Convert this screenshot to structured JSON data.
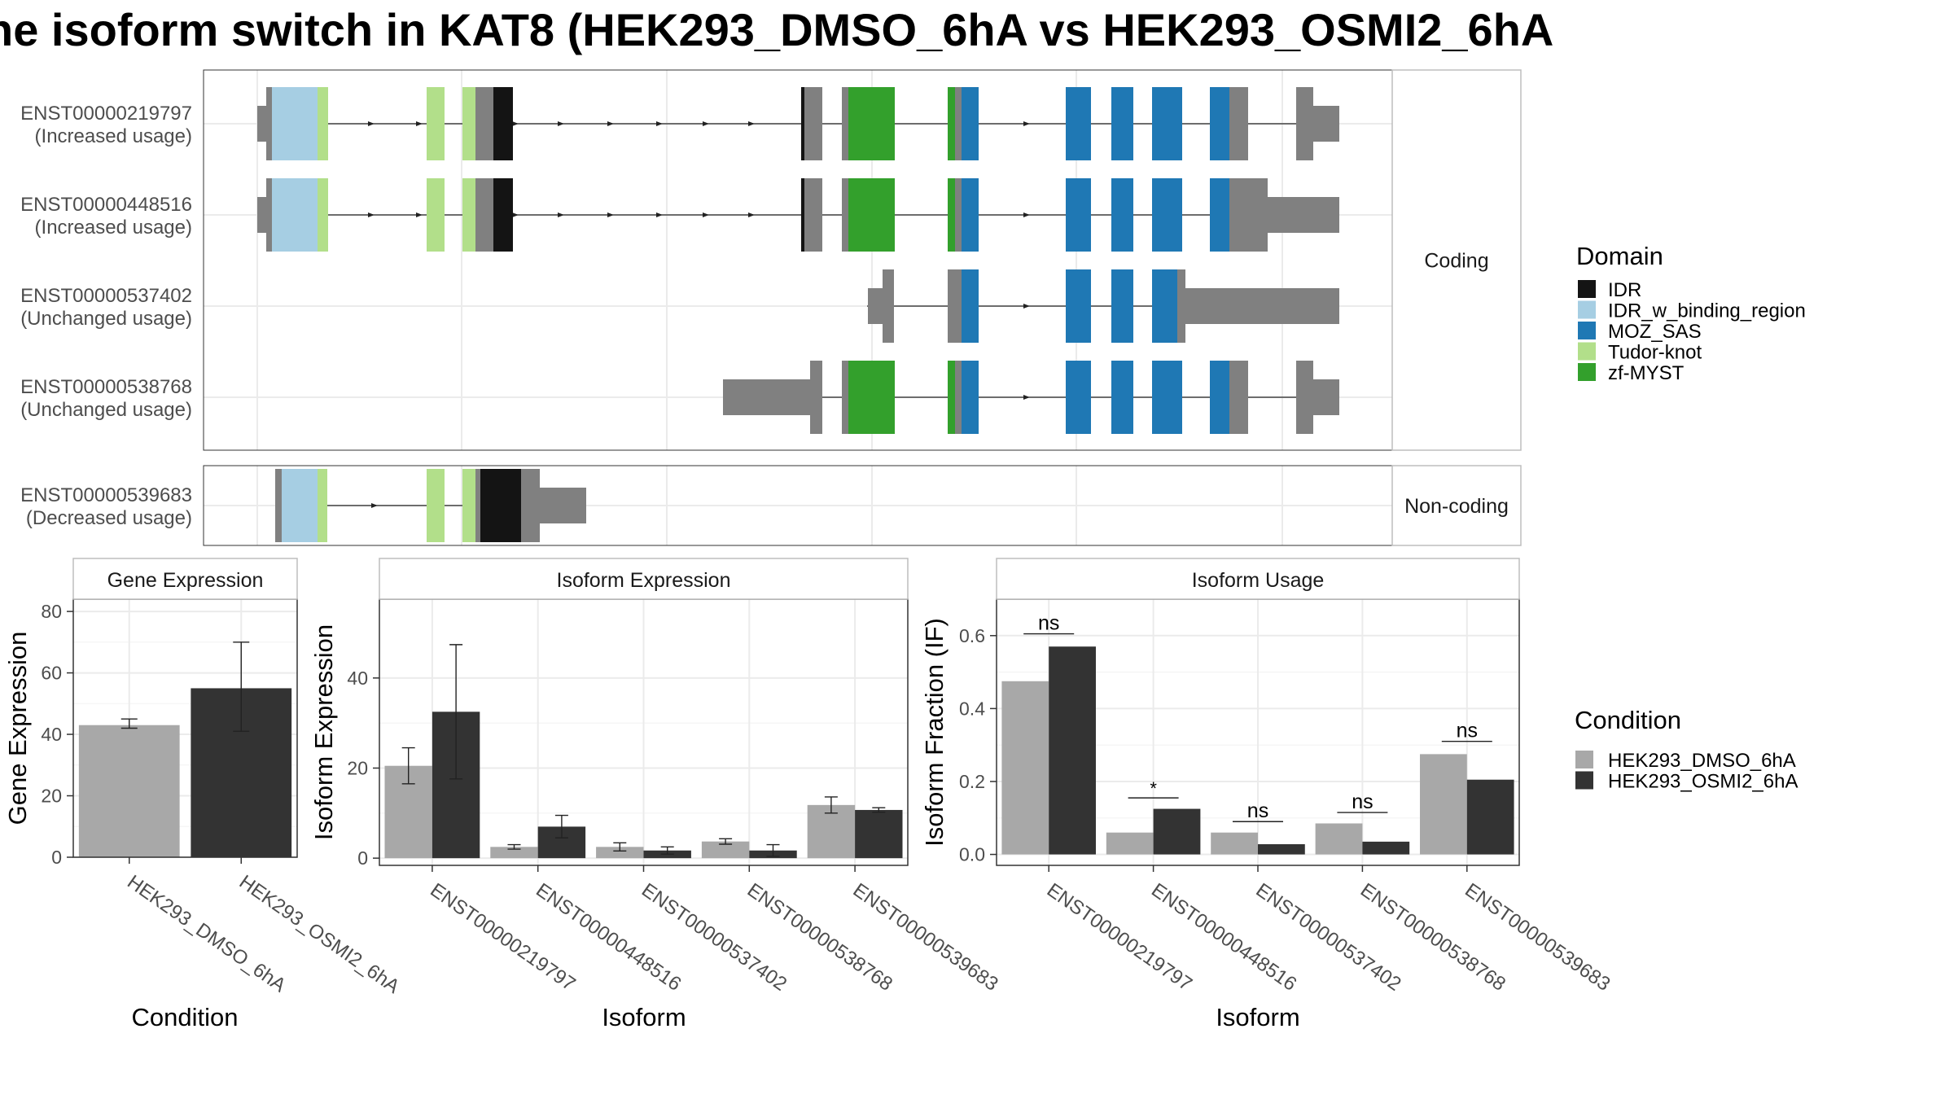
{
  "title": "he isoform switch in KAT8 (HEK293_DMSO_6hA vs HEK293_OSMI2_6hA",
  "colors": {
    "utr": "#808080",
    "IDR": "#141414",
    "IDR_w_binding_region": "#a6cee3",
    "MOZ_SAS": "#1f78b4",
    "Tudor-knot": "#b2df8a",
    "zf-MYST": "#33a02c",
    "HEK293_DMSO_6hA": "#a8a8a8",
    "HEK293_OSMI2_6hA": "#333333"
  },
  "structure": {
    "coding_strip": "Coding",
    "noncoding_strip": "Non-coding",
    "transcripts": [
      {
        "id": "ENST00000219797",
        "usage": "(Increased usage)",
        "panel": "coding"
      },
      {
        "id": "ENST00000448516",
        "usage": "(Increased usage)",
        "panel": "coding"
      },
      {
        "id": "ENST00000537402",
        "usage": "(Unchanged usage)",
        "panel": "coding"
      },
      {
        "id": "ENST00000538768",
        "usage": "(Unchanged usage)",
        "panel": "coding"
      },
      {
        "id": "ENST00000539683",
        "usage": "(Decreased usage)",
        "panel": "noncoding"
      }
    ]
  },
  "legend_domain": {
    "title": "Domain",
    "items": [
      "IDR",
      "IDR_w_binding_region",
      "MOZ_SAS",
      "Tudor-knot",
      "zf-MYST"
    ]
  },
  "legend_condition": {
    "title": "Condition",
    "items": [
      "HEK293_DMSO_6hA",
      "HEK293_OSMI2_6hA"
    ]
  },
  "chart_data": [
    {
      "type": "bar",
      "title": "Gene Expression",
      "xlabel": "Condition",
      "ylabel": "Gene Expression",
      "categories": [
        "HEK293_DMSO_6hA",
        "HEK293_OSMI2_6hA"
      ],
      "values": [
        43,
        55
      ],
      "errors": [
        [
          42,
          45
        ],
        [
          41,
          70
        ]
      ],
      "yticks": [
        0,
        20,
        40,
        60,
        80
      ],
      "ylim": [
        0,
        84
      ],
      "grid": true
    },
    {
      "type": "bar",
      "title": "Isoform Expression",
      "xlabel": "Isoform",
      "ylabel": "Isoform Expression",
      "categories": [
        "ENST00000219797",
        "ENST00000448516",
        "ENST00000537402",
        "ENST00000538768",
        "ENST00000539683"
      ],
      "series": [
        {
          "name": "HEK293_DMSO_6hA",
          "values": [
            20.5,
            2.5,
            2.5,
            3.7,
            11.8
          ],
          "errors": [
            [
              16.5,
              24.5
            ],
            [
              2.0,
              3.0
            ],
            [
              1.6,
              3.4
            ],
            [
              3.1,
              4.3
            ],
            [
              10.0,
              13.6
            ]
          ]
        },
        {
          "name": "HEK293_OSMI2_6hA",
          "values": [
            32.5,
            7.0,
            1.7,
            1.7,
            10.7
          ],
          "errors": [
            [
              17.6,
              47.4
            ],
            [
              4.5,
              9.5
            ],
            [
              0.9,
              2.5
            ],
            [
              0.4,
              3.0
            ],
            [
              10.2,
              11.2
            ]
          ]
        }
      ],
      "yticks": [
        0,
        20,
        40
      ],
      "ylim": [
        -1.6,
        57.5
      ],
      "grid": true
    },
    {
      "type": "bar",
      "title": "Isoform Usage",
      "xlabel": "Isoform",
      "ylabel": "Isoform Fraction (IF)",
      "categories": [
        "ENST00000219797",
        "ENST00000448516",
        "ENST00000537402",
        "ENST00000538768",
        "ENST00000539683"
      ],
      "series": [
        {
          "name": "HEK293_DMSO_6hA",
          "values": [
            0.475,
            0.06,
            0.06,
            0.085,
            0.275
          ]
        },
        {
          "name": "HEK293_OSMI2_6hA",
          "values": [
            0.57,
            0.125,
            0.028,
            0.035,
            0.205
          ]
        }
      ],
      "significance": [
        "ns",
        "*",
        "ns",
        "ns",
        "ns"
      ],
      "sig_y": [
        0.605,
        0.155,
        0.09,
        0.115,
        0.31
      ],
      "yticks": [
        0.0,
        0.2,
        0.4,
        0.6
      ],
      "ytick_labels": [
        "0.0",
        "0.2",
        "0.4",
        "0.6"
      ],
      "ylim": [
        -0.03,
        0.7
      ],
      "grid": true
    }
  ]
}
